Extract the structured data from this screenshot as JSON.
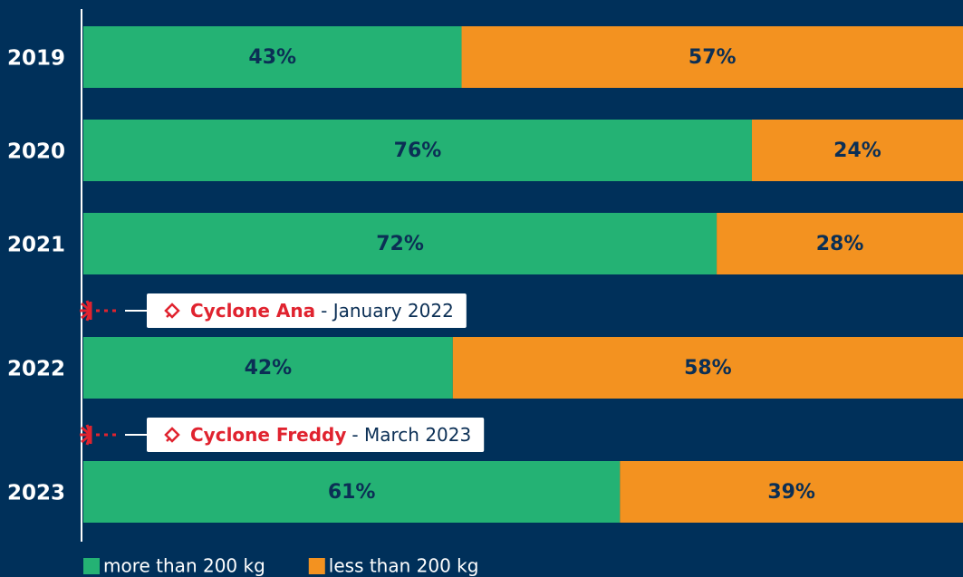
{
  "chart_data": {
    "type": "stacked_bar_horizontal",
    "categories": [
      "2019",
      "2020",
      "2021",
      "2022",
      "2023"
    ],
    "xlim": [
      0,
      100
    ],
    "series": [
      {
        "name": "more than 200 kg",
        "color": "#24b274",
        "values": [
          43,
          76,
          72,
          42,
          61
        ],
        "value_labels": [
          "43%",
          "76%",
          "72%",
          "42%",
          "61%"
        ]
      },
      {
        "name": "less than 200 kg",
        "color": "#f39220",
        "values": [
          57,
          24,
          28,
          58,
          39
        ],
        "value_labels": [
          "57%",
          "24%",
          "28%",
          "58%",
          "39%"
        ]
      }
    ],
    "annotations": [
      {
        "label": "Cyclone Ana",
        "detail": "- January 2022"
      },
      {
        "label": "Cyclone Freddy",
        "detail": "- March 2023"
      }
    ]
  }
}
